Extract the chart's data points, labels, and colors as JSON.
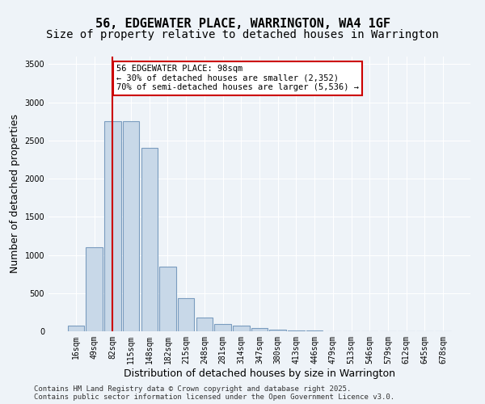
{
  "title1": "56, EDGEWATER PLACE, WARRINGTON, WA4 1GF",
  "title2": "Size of property relative to detached houses in Warrington",
  "xlabel": "Distribution of detached houses by size in Warrington",
  "ylabel": "Number of detached properties",
  "bar_color": "#c8d8e8",
  "bar_edgecolor": "#7a9cbf",
  "vline_color": "#cc0000",
  "vline_x": 2,
  "categories": [
    "16sqm",
    "49sqm",
    "82sqm",
    "115sqm",
    "148sqm",
    "182sqm",
    "215sqm",
    "248sqm",
    "281sqm",
    "314sqm",
    "347sqm",
    "380sqm",
    "413sqm",
    "446sqm",
    "479sqm",
    "513sqm",
    "546sqm",
    "579sqm",
    "612sqm",
    "645sqm",
    "678sqm"
  ],
  "values": [
    75,
    1100,
    2750,
    2750,
    2400,
    850,
    430,
    175,
    100,
    75,
    40,
    20,
    10,
    7,
    5,
    4,
    3,
    2,
    2,
    1,
    1
  ],
  "annotation_text": "56 EDGEWATER PLACE: 98sqm\n← 30% of detached houses are smaller (2,352)\n70% of semi-detached houses are larger (5,536) →",
  "annotation_box_color": "#ffffff",
  "annotation_box_edgecolor": "#cc0000",
  "ylim": [
    0,
    3600
  ],
  "yticks": [
    0,
    500,
    1000,
    1500,
    2000,
    2500,
    3000,
    3500
  ],
  "bg_color": "#eef3f8",
  "plot_bg_color": "#eef3f8",
  "footer1": "Contains HM Land Registry data © Crown copyright and database right 2025.",
  "footer2": "Contains public sector information licensed under the Open Government Licence v3.0.",
  "title_fontsize": 11,
  "subtitle_fontsize": 10,
  "tick_fontsize": 7,
  "label_fontsize": 9
}
